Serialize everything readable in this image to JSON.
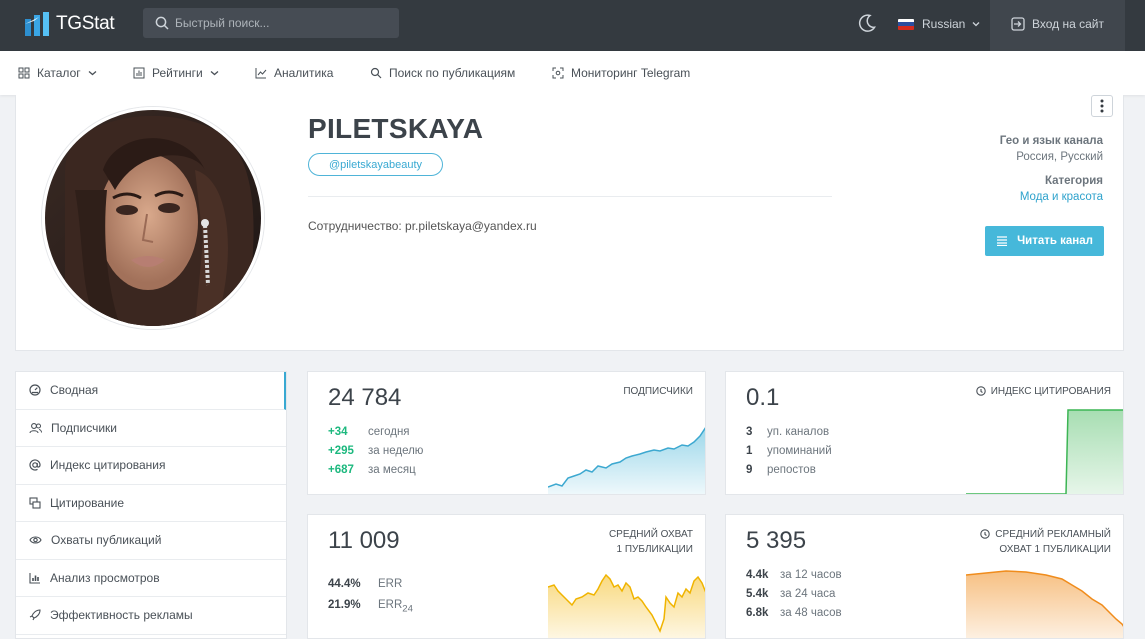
{
  "brand": {
    "name": "TGStat"
  },
  "search": {
    "placeholder": "Быстрый поиск..."
  },
  "language": {
    "label": "Russian"
  },
  "login": {
    "label": "Вход на сайт"
  },
  "nav": {
    "catalog": "Каталог",
    "ratings": "Рейтинги",
    "analytics": "Аналитика",
    "post_search": "Поиск по публикациям",
    "monitoring": "Мониторинг Telegram"
  },
  "channel": {
    "title": "PILETSKAYA",
    "handle": "@piletskayabeauty",
    "description": "Сотрудничество: pr.piletskaya@yandex.ru",
    "geo_heading": "Гео и язык канала",
    "geo_value": "Россия, Русский",
    "category_heading": "Категория",
    "category_value": "Мода и красота",
    "read_button": "Читать канал"
  },
  "sidebar": {
    "items": [
      {
        "label": "Сводная",
        "icon": "dashboard-icon"
      },
      {
        "label": "Подписчики",
        "icon": "users-icon"
      },
      {
        "label": "Индекс цитирования",
        "icon": "at-icon"
      },
      {
        "label": "Цитирование",
        "icon": "quote-icon"
      },
      {
        "label": "Охваты публикаций",
        "icon": "eye-icon"
      },
      {
        "label": "Анализ просмотров",
        "icon": "bar-chart-icon"
      },
      {
        "label": "Эффективность рекламы",
        "icon": "rocket-icon"
      }
    ]
  },
  "cards": {
    "subscribers": {
      "value": "24 784",
      "title": "ПОДПИСЧИКИ",
      "rows": [
        {
          "v": "+34",
          "l": "сегодня"
        },
        {
          "v": "+295",
          "l": "за неделю"
        },
        {
          "v": "+687",
          "l": "за месяц"
        }
      ]
    },
    "citation": {
      "value": "0.1",
      "title": "ИНДЕКС ЦИТИРОВАНИЯ",
      "rows": [
        {
          "v": "3",
          "l": "уп. каналов"
        },
        {
          "v": "1",
          "l": "упоминаний"
        },
        {
          "v": "9",
          "l": "репостов"
        }
      ]
    },
    "reach": {
      "value": "11 009",
      "title_line1": "СРЕДНИЙ ОХВАТ",
      "title_line2": "1 ПУБЛИКАЦИИ",
      "err": {
        "v": "44.4%",
        "l": "ERR"
      },
      "err24": {
        "v": "21.9%",
        "l": "ERR",
        "sub": "24"
      }
    },
    "ad_reach": {
      "value": "5 395",
      "title_line1": "СРЕДНИЙ РЕКЛАМНЫЙ",
      "title_line2": "ОХВАТ 1 ПУБЛИКАЦИИ",
      "rows": [
        {
          "v": "4.4k",
          "l": "за 12 часов"
        },
        {
          "v": "5.4k",
          "l": "за 24 часа"
        },
        {
          "v": "6.8k",
          "l": "за 48 часов"
        }
      ]
    }
  },
  "colors": {
    "accent": "#46b8da",
    "positive": "#1cb87e",
    "spark_subscribers": "#4ab6d8",
    "spark_citation": "#3cb554",
    "spark_reach": "#f5c02a",
    "spark_ad": "#f08c1c"
  }
}
